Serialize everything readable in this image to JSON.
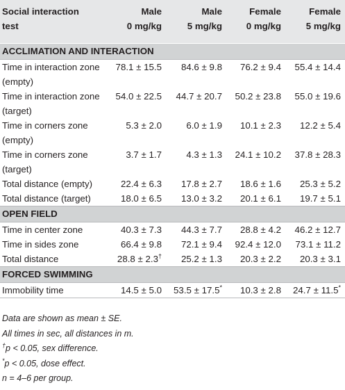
{
  "header": {
    "col0": [
      "Social interaction",
      "test"
    ],
    "col1": [
      "Male",
      "0 mg/kg"
    ],
    "col2": [
      "Male",
      "5 mg/kg"
    ],
    "col3": [
      "Female",
      "0 mg/kg"
    ],
    "col4": [
      "Female",
      "5 mg/kg"
    ]
  },
  "sections": [
    {
      "title": "ACCLIMATION AND INTERACTION",
      "rows": [
        {
          "label": "Time in interaction zone (empty)",
          "values": [
            "78.1 ± 15.5",
            "84.6 ± 9.8",
            "76.2 ± 9.4",
            "55.4 ± 14.4"
          ]
        },
        {
          "label": "Time in interaction zone (target)",
          "values": [
            "54.0 ± 22.5",
            "44.7 ± 20.7",
            "50.2 ± 23.8",
            "55.0 ± 19.6"
          ]
        },
        {
          "label": "Time in corners zone (empty)",
          "values": [
            "5.3 ± 2.0",
            "6.0 ± 1.9",
            "10.1 ± 2.3",
            "12.2 ± 5.4"
          ]
        },
        {
          "label": "Time in corners zone (target)",
          "values": [
            "3.7 ± 1.7",
            "4.3 ± 1.3",
            "24.1 ± 10.2",
            "37.8 ± 28.3"
          ]
        },
        {
          "label": "Total distance (empty)",
          "values": [
            "22.4 ± 6.3",
            "17.8 ± 2.7",
            "18.6 ± 1.6",
            "25.3 ± 5.2"
          ]
        },
        {
          "label": "Total distance (target)",
          "values": [
            "18.0 ± 6.5",
            "13.0 ± 3.2",
            "20.1 ± 6.1",
            "19.7 ± 5.1"
          ]
        }
      ]
    },
    {
      "title": "OPEN FIELD",
      "rows": [
        {
          "label": "Time in center zone",
          "values": [
            "40.3 ± 7.3",
            "44.3 ± 7.7",
            "28.8 ± 4.2",
            "46.2 ± 12.7"
          ]
        },
        {
          "label": "Time in sides zone",
          "values": [
            "66.4 ± 9.8",
            "72.1 ± 9.4",
            "92.4 ± 12.0",
            "73.1 ± 11.2"
          ]
        },
        {
          "label": "Total distance",
          "values": [
            "28.8 ± 2.3",
            "25.2 ± 1.3",
            "20.3 ± 2.2",
            "20.3 ± 3.1"
          ],
          "marks": [
            "†",
            "",
            "",
            ""
          ]
        }
      ]
    },
    {
      "title": "FORCED SWIMMING",
      "rows": [
        {
          "label": "Immobility time",
          "values": [
            "14.5 ± 5.0",
            "53.5 ± 17.5",
            "10.3 ± 2.8",
            "24.7 ± 11.5"
          ],
          "marks": [
            "",
            "*",
            "",
            "*"
          ]
        }
      ]
    }
  ],
  "notes": {
    "mean_se": "Data are shown as mean ± SE.",
    "units": "All times in sec, all distances in m.",
    "sex_mark": "†",
    "sex_text": "p < 0.05, sex difference.",
    "dose_mark": "*",
    "dose_text": "p < 0.05, dose effect.",
    "n_text": "n = 4–6 per group."
  }
}
